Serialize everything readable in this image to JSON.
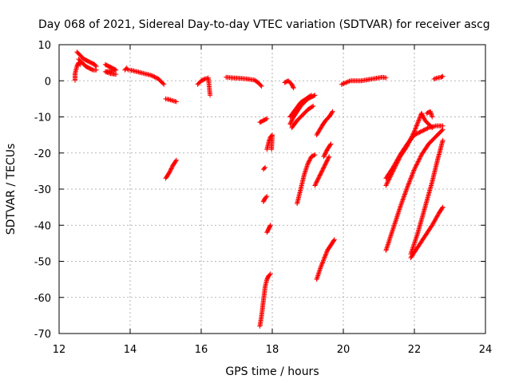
{
  "chart_data": {
    "type": "scatter",
    "title": "Day 068 of 2021, Sidereal Day-to-day VTEC variation (SDTVAR) for receiver ascg",
    "xlabel": "GPS time / hours",
    "ylabel": "SDTVAR / TECUs",
    "xlim": [
      12,
      24
    ],
    "ylim": [
      -70,
      10
    ],
    "xticks": [
      12,
      14,
      16,
      18,
      20,
      22,
      24
    ],
    "yticks": [
      10,
      0,
      -10,
      -20,
      -30,
      -40,
      -50,
      -60,
      -70
    ],
    "grid": true,
    "marker": "+",
    "color": "#ff0000",
    "series": [
      {
        "name": "trace-01",
        "points": [
          [
            12.45,
            0.1
          ],
          [
            12.45,
            2.0
          ],
          [
            12.5,
            4.0
          ],
          [
            12.55,
            5.0
          ],
          [
            12.6,
            4.5
          ]
        ]
      },
      {
        "name": "trace-02",
        "points": [
          [
            12.5,
            8.0
          ],
          [
            12.6,
            7.0
          ],
          [
            12.7,
            6.0
          ],
          [
            12.8,
            5.5
          ],
          [
            12.9,
            5.0
          ],
          [
            13.0,
            4.5
          ],
          [
            13.05,
            4.0
          ]
        ]
      },
      {
        "name": "trace-03",
        "points": [
          [
            12.55,
            6.0
          ],
          [
            12.65,
            5.0
          ],
          [
            12.75,
            4.0
          ],
          [
            12.85,
            3.5
          ],
          [
            12.95,
            3.0
          ],
          [
            13.05,
            3.0
          ]
        ]
      },
      {
        "name": "trace-04",
        "points": [
          [
            13.3,
            4.5
          ],
          [
            13.4,
            4.0
          ],
          [
            13.5,
            3.5
          ],
          [
            13.6,
            3.0
          ],
          [
            13.3,
            2.5
          ],
          [
            13.45,
            2.0
          ],
          [
            13.6,
            1.8
          ]
        ]
      },
      {
        "name": "trace-05",
        "points": [
          [
            13.85,
            3.0
          ],
          [
            13.9,
            3.5
          ],
          [
            13.95,
            3.0
          ]
        ]
      },
      {
        "name": "trace-06",
        "points": [
          [
            14.0,
            3.0
          ],
          [
            14.2,
            2.5
          ],
          [
            14.4,
            2.0
          ],
          [
            14.6,
            1.5
          ],
          [
            14.8,
            0.5
          ],
          [
            14.95,
            -1.0
          ]
        ]
      },
      {
        "name": "trace-07",
        "points": [
          [
            15.0,
            -5.0
          ],
          [
            15.1,
            -5.2
          ],
          [
            15.2,
            -5.5
          ],
          [
            15.3,
            -5.8
          ]
        ]
      },
      {
        "name": "trace-08",
        "points": [
          [
            15.0,
            -27.0
          ],
          [
            15.1,
            -25.5
          ],
          [
            15.2,
            -23.5
          ],
          [
            15.3,
            -22.0
          ]
        ]
      },
      {
        "name": "trace-09",
        "points": [
          [
            15.9,
            -1.0
          ],
          [
            16.0,
            0.0
          ],
          [
            16.1,
            0.5
          ],
          [
            16.2,
            0.8
          ],
          [
            16.25,
            -4.0
          ]
        ]
      },
      {
        "name": "trace-10",
        "points": [
          [
            16.7,
            1.0
          ],
          [
            16.9,
            0.8
          ],
          [
            17.1,
            0.7
          ],
          [
            17.3,
            0.5
          ],
          [
            17.5,
            0.2
          ],
          [
            17.6,
            -0.5
          ],
          [
            17.7,
            -1.5
          ]
        ]
      },
      {
        "name": "trace-11",
        "points": [
          [
            17.65,
            -11.5
          ],
          [
            17.75,
            -11.0
          ],
          [
            17.85,
            -10.5
          ]
        ]
      },
      {
        "name": "trace-12",
        "points": [
          [
            17.65,
            -68.0
          ],
          [
            17.7,
            -65.0
          ],
          [
            17.75,
            -61.0
          ],
          [
            17.8,
            -57.0
          ],
          [
            17.85,
            -55.0
          ],
          [
            17.9,
            -54.0
          ],
          [
            17.95,
            -53.5
          ]
        ]
      },
      {
        "name": "trace-13",
        "points": [
          [
            17.75,
            -33.5
          ],
          [
            17.8,
            -32.5
          ],
          [
            17.85,
            -32.0
          ]
        ]
      },
      {
        "name": "trace-14",
        "points": [
          [
            17.75,
            -24.5
          ],
          [
            17.8,
            -24.0
          ]
        ]
      },
      {
        "name": "trace-15",
        "points": [
          [
            17.85,
            -42.0
          ],
          [
            17.9,
            -41.0
          ],
          [
            17.95,
            -40.0
          ]
        ]
      },
      {
        "name": "trace-16",
        "points": [
          [
            17.85,
            -19.0
          ],
          [
            17.9,
            -17.0
          ],
          [
            17.95,
            -15.5
          ],
          [
            18.0,
            -15.0
          ],
          [
            17.98,
            -19.0
          ]
        ]
      },
      {
        "name": "trace-17",
        "points": [
          [
            18.35,
            -0.5
          ],
          [
            18.45,
            0.0
          ],
          [
            18.55,
            -1.0
          ],
          [
            18.6,
            -2.0
          ]
        ]
      },
      {
        "name": "trace-18",
        "points": [
          [
            18.5,
            -12.0
          ],
          [
            18.6,
            -10.0
          ],
          [
            18.7,
            -8.5
          ],
          [
            18.8,
            -7.0
          ],
          [
            18.9,
            -6.0
          ],
          [
            19.0,
            -5.0
          ],
          [
            19.1,
            -4.5
          ],
          [
            19.2,
            -4.0
          ]
        ]
      },
      {
        "name": "trace-19",
        "points": [
          [
            18.5,
            -10.0
          ],
          [
            18.65,
            -8.0
          ],
          [
            18.8,
            -6.0
          ],
          [
            18.95,
            -5.0
          ],
          [
            19.1,
            -4.0
          ]
        ]
      },
      {
        "name": "trace-20",
        "points": [
          [
            18.55,
            -13.0
          ],
          [
            18.7,
            -11.0
          ],
          [
            18.85,
            -9.5
          ],
          [
            19.0,
            -8.0
          ],
          [
            19.15,
            -7.0
          ]
        ]
      },
      {
        "name": "trace-21",
        "points": [
          [
            18.7,
            -34.0
          ],
          [
            18.8,
            -30.0
          ],
          [
            18.9,
            -26.0
          ],
          [
            19.0,
            -23.0
          ],
          [
            19.1,
            -21.0
          ],
          [
            19.2,
            -20.5
          ]
        ]
      },
      {
        "name": "trace-22",
        "points": [
          [
            19.2,
            -29.0
          ],
          [
            19.3,
            -27.0
          ],
          [
            19.4,
            -25.0
          ],
          [
            19.5,
            -23.0
          ],
          [
            19.6,
            -21.0
          ]
        ]
      },
      {
        "name": "trace-23",
        "points": [
          [
            19.25,
            -15.0
          ],
          [
            19.4,
            -12.5
          ],
          [
            19.5,
            -11.0
          ],
          [
            19.6,
            -10.0
          ],
          [
            19.7,
            -8.5
          ]
        ]
      },
      {
        "name": "trace-24",
        "points": [
          [
            19.45,
            -21.0
          ],
          [
            19.55,
            -19.0
          ],
          [
            19.65,
            -17.5
          ]
        ]
      },
      {
        "name": "trace-25",
        "points": [
          [
            19.25,
            -55.0
          ],
          [
            19.35,
            -52.0
          ],
          [
            19.45,
            -49.5
          ],
          [
            19.55,
            -47.0
          ],
          [
            19.65,
            -45.5
          ],
          [
            19.75,
            -44.0
          ]
        ]
      },
      {
        "name": "trace-26",
        "points": [
          [
            19.95,
            -1.0
          ],
          [
            20.2,
            0.0
          ],
          [
            20.5,
            0.0
          ],
          [
            20.8,
            0.5
          ],
          [
            21.1,
            1.0
          ],
          [
            21.2,
            0.8
          ]
        ]
      },
      {
        "name": "trace-27",
        "points": [
          [
            21.2,
            -29.0
          ],
          [
            21.4,
            -25.0
          ],
          [
            21.6,
            -21.0
          ],
          [
            21.8,
            -18.0
          ],
          [
            22.0,
            -14.0
          ],
          [
            22.2,
            -9.0
          ],
          [
            22.3,
            -11.0
          ],
          [
            22.5,
            -13.0
          ]
        ]
      },
      {
        "name": "trace-28",
        "points": [
          [
            21.2,
            -27.0
          ],
          [
            21.4,
            -24.0
          ],
          [
            21.6,
            -20.5
          ],
          [
            21.8,
            -17.5
          ],
          [
            22.0,
            -15.0
          ],
          [
            22.2,
            -14.0
          ],
          [
            22.4,
            -13.0
          ],
          [
            22.6,
            -12.5
          ],
          [
            22.8,
            -12.5
          ]
        ]
      },
      {
        "name": "trace-29",
        "points": [
          [
            22.35,
            -9.0
          ],
          [
            22.45,
            -8.5
          ],
          [
            22.5,
            -10.0
          ]
        ]
      },
      {
        "name": "trace-30",
        "points": [
          [
            21.2,
            -47.0
          ],
          [
            21.4,
            -41.0
          ],
          [
            21.6,
            -35.0
          ],
          [
            21.8,
            -29.5
          ],
          [
            22.0,
            -24.5
          ],
          [
            22.2,
            -20.5
          ],
          [
            22.4,
            -17.5
          ],
          [
            22.6,
            -15.5
          ],
          [
            22.8,
            -13.5
          ]
        ]
      },
      {
        "name": "trace-31",
        "points": [
          [
            21.9,
            -49.0
          ],
          [
            22.1,
            -46.0
          ],
          [
            22.3,
            -43.0
          ],
          [
            22.5,
            -40.0
          ],
          [
            22.7,
            -36.5
          ],
          [
            22.8,
            -35.0
          ]
        ]
      },
      {
        "name": "trace-32",
        "points": [
          [
            21.9,
            -48.0
          ],
          [
            22.1,
            -42.0
          ],
          [
            22.3,
            -35.0
          ],
          [
            22.5,
            -28.0
          ],
          [
            22.65,
            -22.0
          ],
          [
            22.8,
            -16.5
          ]
        ]
      },
      {
        "name": "trace-33",
        "points": [
          [
            22.55,
            0.5
          ],
          [
            22.65,
            0.8
          ],
          [
            22.75,
            1.0
          ],
          [
            22.8,
            1.2
          ]
        ]
      }
    ]
  }
}
